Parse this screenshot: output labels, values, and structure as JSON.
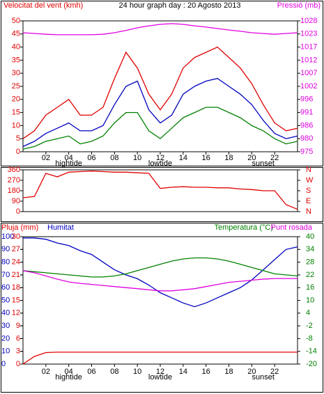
{
  "chart_data": [
    {
      "type": "line",
      "title": "24 hour graph day : 20 Agosto 2013",
      "y_label": "Velocitat del vent (kmh)",
      "y2_label": "Pressió (mb)",
      "x": [
        0,
        1,
        2,
        3,
        4,
        5,
        6,
        7,
        8,
        9,
        10,
        11,
        12,
        13,
        14,
        15,
        16,
        17,
        18,
        19,
        20,
        21,
        22,
        23,
        24
      ],
      "xlim": [
        0,
        24
      ],
      "xticks": [
        {
          "value": 2,
          "label": "02"
        },
        {
          "value": 4,
          "label": "04"
        },
        {
          "value": 6,
          "label": "06"
        },
        {
          "value": 8,
          "label": "08"
        },
        {
          "value": 10,
          "label": "10"
        },
        {
          "value": 12,
          "label": "12"
        },
        {
          "value": 14,
          "label": "14"
        },
        {
          "value": 16,
          "label": "16"
        },
        {
          "value": 18,
          "label": "18"
        },
        {
          "value": 20,
          "label": "20"
        },
        {
          "value": 22,
          "label": "22"
        }
      ],
      "annotations": [
        {
          "text": "hightide",
          "x": 4
        },
        {
          "text": "lowtide",
          "x": 12
        },
        {
          "text": "sunset",
          "x": 21
        }
      ],
      "ylim": [
        0,
        50
      ],
      "yticks": [
        0,
        5,
        10,
        15,
        20,
        25,
        30,
        35,
        40,
        45,
        50
      ],
      "ycolor": "#e00000",
      "y2lim": [
        975,
        1028
      ],
      "y2color": "#e000e0",
      "y2ticks": [
        975,
        {
          "value": 980.3,
          "label": "980"
        },
        {
          "value": 985.6,
          "label": "986"
        },
        {
          "value": 990.9,
          "label": "991"
        },
        {
          "value": 996.2,
          "label": "996"
        },
        {
          "value": 1001.5,
          "label": "1002"
        },
        {
          "value": 1006.8,
          "label": "1007"
        },
        {
          "value": 1012.1,
          "label": "1012"
        },
        {
          "value": 1017.4,
          "label": "1017"
        },
        {
          "value": 1022.7,
          "label": "1023"
        },
        1028
      ],
      "series": [
        {
          "color": "#e00000",
          "values": [
            5,
            8,
            14,
            17,
            20,
            14,
            14,
            17,
            28,
            38,
            32,
            22,
            16,
            22,
            32,
            36,
            38,
            40,
            36,
            32,
            26,
            18,
            11,
            8,
            9
          ]
        },
        {
          "color": "#008000",
          "values": [
            1,
            2,
            4,
            5,
            6,
            3,
            4,
            6,
            11,
            15,
            15,
            8,
            5,
            9,
            13,
            15,
            17,
            17,
            15,
            13,
            10,
            8,
            5,
            3,
            4
          ]
        },
        {
          "color": "#0000c0",
          "values": [
            2,
            4,
            7,
            9,
            11,
            8,
            8,
            10,
            18,
            25,
            27,
            16,
            11,
            14,
            22,
            25,
            27,
            28,
            25,
            22,
            18,
            12,
            7,
            5,
            6
          ]
        },
        {
          "color": "#e000e0",
          "axis": "y2",
          "values": [
            1023.2,
            1022.9,
            1022.6,
            1022.4,
            1022.4,
            1022.4,
            1022.4,
            1022.6,
            1023.2,
            1024.1,
            1025.2,
            1026.0,
            1026.6,
            1026.9,
            1026.6,
            1026.0,
            1025.5,
            1024.9,
            1024.3,
            1023.8,
            1023.2,
            1022.9,
            1022.6,
            1022.9,
            1023.2
          ]
        }
      ]
    },
    {
      "type": "line",
      "x": [
        0,
        1,
        2,
        3,
        4,
        5,
        6,
        7,
        8,
        9,
        10,
        11,
        12,
        13,
        14,
        15,
        16,
        17,
        18,
        19,
        20,
        21,
        22,
        23,
        24
      ],
      "xlim": [
        0,
        24
      ],
      "ylim": [
        0,
        360
      ],
      "yticks": [
        0,
        90,
        180,
        270,
        360
      ],
      "ycolor": "#e00000",
      "y2lim": [
        0,
        360
      ],
      "y2color": "#e00000",
      "y2ticks": [
        {
          "value": 360,
          "label": "N"
        },
        {
          "value": 270,
          "label": "W"
        },
        {
          "value": 180,
          "label": "S"
        },
        {
          "value": 90,
          "label": "E"
        },
        {
          "value": 0,
          "label": "N"
        }
      ],
      "series": [
        {
          "color": "#e00000",
          "values": [
            120,
            130,
            330,
            300,
            340,
            345,
            350,
            345,
            340,
            340,
            335,
            330,
            200,
            210,
            215,
            210,
            210,
            205,
            205,
            195,
            190,
            180,
            180,
            60,
            20
          ]
        }
      ]
    },
    {
      "type": "line",
      "x": [
        0,
        1,
        2,
        3,
        4,
        5,
        6,
        7,
        8,
        9,
        10,
        11,
        12,
        13,
        14,
        15,
        16,
        17,
        18,
        19,
        20,
        21,
        22,
        23,
        24
      ],
      "xlim": [
        0,
        24
      ],
      "xticks": [
        {
          "value": 2,
          "label": "02"
        },
        {
          "value": 4,
          "label": "04"
        },
        {
          "value": 6,
          "label": "06"
        },
        {
          "value": 8,
          "label": "08"
        },
        {
          "value": 10,
          "label": "10"
        },
        {
          "value": 12,
          "label": "12"
        },
        {
          "value": 14,
          "label": "14"
        },
        {
          "value": 16,
          "label": "16"
        },
        {
          "value": 18,
          "label": "18"
        },
        {
          "value": 20,
          "label": "20"
        },
        {
          "value": 22,
          "label": "22"
        }
      ],
      "annotations": [
        {
          "text": "hightide",
          "x": 4
        },
        {
          "text": "lowtide",
          "x": 12
        },
        {
          "text": "sunset",
          "x": 21
        }
      ],
      "ylim": [
        0,
        100
      ],
      "yticks": [
        0,
        10,
        20,
        30,
        40,
        50,
        60,
        70,
        80,
        90,
        100
      ],
      "ycolor": "#0000c0",
      "y3lim": [
        0,
        30
      ],
      "y3ticks": [
        0,
        3,
        6,
        9,
        12,
        15,
        18,
        21,
        24,
        27,
        30
      ],
      "y3color": "#e00000",
      "y2lim": [
        -20,
        40
      ],
      "y2ticks": [
        -20,
        -14,
        -8,
        -2,
        4,
        10,
        16,
        22,
        28,
        34,
        40
      ],
      "y2color": "#008000",
      "series": [
        {
          "name": "Pluja (mm)",
          "color": "#e00000",
          "axis": "y3",
          "values": [
            0,
            1.8,
            2.7,
            2.8,
            2.8,
            2.8,
            2.8,
            2.8,
            2.8,
            2.8,
            2.8,
            2.8,
            2.8,
            2.8,
            2.8,
            2.8,
            2.8,
            2.8,
            2.8,
            2.8,
            2.8,
            2.8,
            2.8,
            2.8,
            2.8
          ]
        },
        {
          "name": "Humitat",
          "color": "#0000c0",
          "values": [
            99,
            99,
            98,
            95,
            93,
            89,
            86,
            80,
            74,
            70,
            67,
            62,
            56,
            52,
            48,
            45,
            48,
            52,
            56,
            60,
            66,
            74,
            82,
            90,
            92
          ]
        },
        {
          "name": "Temperatura (°C)",
          "color": "#008000",
          "axis": "y2",
          "values": [
            24,
            23.5,
            23,
            22.5,
            22,
            21.5,
            21,
            21,
            21.5,
            22.5,
            24,
            25.5,
            27,
            28.5,
            29.5,
            30,
            30,
            29.5,
            28.5,
            27,
            25.5,
            24,
            22.5,
            22,
            21.5
          ]
        },
        {
          "name": "Punt rosada",
          "color": "#e000e0",
          "axis": "y2",
          "values": [
            24,
            23,
            21.5,
            20,
            18.7,
            18,
            17.5,
            17,
            16.5,
            16,
            15.5,
            15,
            14.5,
            14.5,
            15,
            15.5,
            16.5,
            17.5,
            18.5,
            19,
            19.5,
            20,
            20.3,
            20.3,
            20.3
          ]
        }
      ]
    }
  ]
}
